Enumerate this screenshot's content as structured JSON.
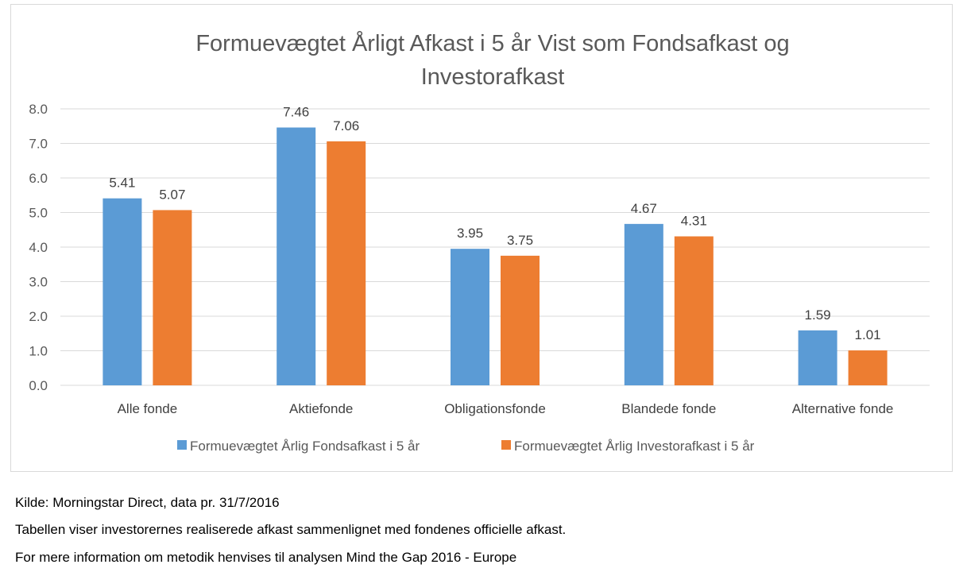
{
  "chart_data": {
    "type": "bar",
    "title_lines": [
      "Formuevægtet Årligt Afkast i 5 år Vist som Fondsafkast og",
      "Investorafkast"
    ],
    "categories": [
      "Alle fonde",
      "Aktiefonde",
      "Obligationsfonde",
      "Blandede fonde",
      "Alternative fonde"
    ],
    "series": [
      {
        "name": "Formuevægtet Årlig Fondsafkast i 5 år",
        "color": "#5b9bd5",
        "values": [
          5.41,
          7.46,
          3.95,
          4.67,
          1.59
        ]
      },
      {
        "name": "Formuevægtet Årlig Investorafkast i 5 år",
        "color": "#ed7d31",
        "values": [
          5.07,
          7.06,
          3.75,
          4.31,
          1.01
        ]
      }
    ],
    "value_labels": [
      [
        "5.41",
        "7.46",
        "3.95",
        "4.67",
        "1.59"
      ],
      [
        "5.07",
        "7.06",
        "3.75",
        "4.31",
        "1.01"
      ]
    ],
    "ylim": [
      0,
      8
    ],
    "yticks": [
      "0.0",
      "1.0",
      "2.0",
      "3.0",
      "4.0",
      "5.0",
      "6.0",
      "7.0",
      "8.0"
    ],
    "grid": true,
    "legend_position": "bottom"
  },
  "notes": {
    "source": "Kilde: Morningstar Direct, data pr. 31/7/2016",
    "description": "Tabellen viser investorernes realiserede afkast sammenlignet med fondenes officielle afkast.",
    "more_info": "For mere information om metodik henvises til analysen Mind the Gap 2016 - Europe"
  }
}
